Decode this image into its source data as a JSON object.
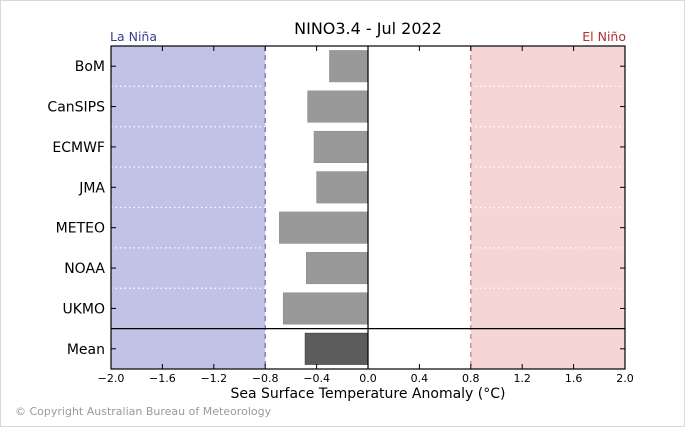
{
  "copyright": "© Copyright Australian Bureau of Meteorology",
  "colors": {
    "la_nina_fill": "#c2c2e6",
    "el_nino_fill": "#f5d5d5",
    "la_nina_text": "#3d3d8f",
    "el_nino_text": "#b03030",
    "model_bar": "#999999",
    "mean_bar": "#5c5c5c"
  },
  "chart_data": {
    "type": "bar",
    "orientation": "horizontal",
    "title": "NINO3.4 - Jul 2022",
    "xlabel": "Sea Surface Temperature Anomaly (°C)",
    "xlim": [
      -2.0,
      2.0
    ],
    "xticks": [
      -2.0,
      -1.6,
      -1.2,
      -0.8,
      -0.4,
      0.0,
      0.4,
      0.8,
      1.2,
      1.6,
      2.0
    ],
    "xtick_labels": [
      "−2.0",
      "−1.6",
      "−1.2",
      "−0.8",
      "−0.4",
      "0.0",
      "0.4",
      "0.8",
      "1.2",
      "1.6",
      "2.0"
    ],
    "categories": [
      "BoM",
      "CanSIPS",
      "ECMWF",
      "JMA",
      "METEO",
      "NOAA",
      "UKMO",
      "Mean"
    ],
    "values": [
      -0.3,
      -0.47,
      -0.42,
      -0.4,
      -0.69,
      -0.48,
      -0.66,
      -0.49
    ],
    "thresholds": [
      -0.8,
      0.8
    ],
    "regions": [
      {
        "label": "La Niña",
        "from": -2.0,
        "to": -0.8
      },
      {
        "label": "El Niño",
        "from": 0.8,
        "to": 2.0
      }
    ]
  }
}
